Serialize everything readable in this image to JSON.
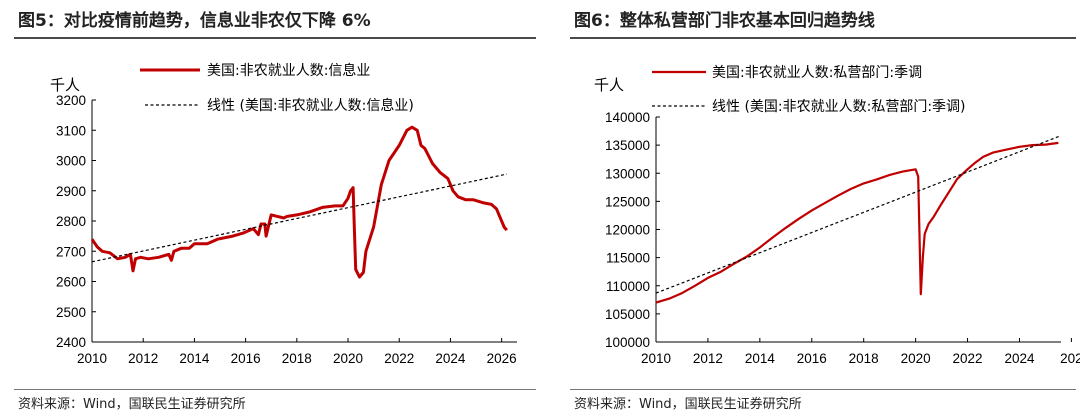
{
  "panels": {
    "left": {
      "title": "图5：对比疫情前趋势，信息业非农仅下降 6%",
      "source": "资料来源：Wind，国联民生证券研究所"
    },
    "right": {
      "title": "图6：整体私营部门非农基本回归趋势线",
      "source": "资料来源：Wind，国联民生证券研究所"
    }
  },
  "colors": {
    "series": "#c00000",
    "trend": "#000000",
    "axis": "#000000"
  },
  "chart_data": [
    {
      "type": "line",
      "title": "",
      "ylabel": "千人",
      "xlim": [
        2010,
        2026.6
      ],
      "ylim": [
        2400,
        3200
      ],
      "xticks": [
        "2010",
        "2012",
        "2014",
        "2016",
        "2018",
        "2020",
        "2022",
        "2024",
        "2026"
      ],
      "yticks": [
        "2400",
        "2500",
        "2600",
        "2700",
        "2800",
        "2900",
        "3000",
        "3100",
        "3200"
      ],
      "legend_position": "top",
      "series": [
        {
          "name": "美国:非农就业人数:信息业",
          "style": "solid",
          "x": [
            2010.0,
            2010.2,
            2010.4,
            2010.7,
            2011.0,
            2011.3,
            2011.5,
            2011.6,
            2011.7,
            2011.9,
            2012.2,
            2012.6,
            2013.0,
            2013.1,
            2013.2,
            2013.5,
            2013.8,
            2014.0,
            2014.5,
            2014.9,
            2015.5,
            2015.9,
            2016.3,
            2016.5,
            2016.6,
            2016.75,
            2016.8,
            2017.0,
            2017.5,
            2017.6,
            2018.0,
            2018.5,
            2019.0,
            2019.5,
            2019.8,
            2020.0,
            2020.1,
            2020.2,
            2020.25,
            2020.3,
            2020.45,
            2020.6,
            2020.7,
            2021.0,
            2021.3,
            2021.6,
            2022.0,
            2022.3,
            2022.5,
            2022.7,
            2022.85,
            2023.0,
            2023.3,
            2023.6,
            2023.9,
            2024.1,
            2024.3,
            2024.6,
            2024.9,
            2025.3,
            2025.6,
            2025.8,
            2026.0,
            2026.1,
            2026.2
          ],
          "values": [
            2740,
            2715,
            2700,
            2695,
            2675,
            2680,
            2690,
            2635,
            2675,
            2680,
            2675,
            2680,
            2690,
            2670,
            2700,
            2710,
            2710,
            2725,
            2725,
            2740,
            2750,
            2760,
            2775,
            2755,
            2790,
            2790,
            2750,
            2820,
            2810,
            2815,
            2820,
            2830,
            2845,
            2850,
            2850,
            2875,
            2900,
            2910,
            2770,
            2640,
            2615,
            2630,
            2700,
            2780,
            2920,
            3000,
            3050,
            3100,
            3110,
            3100,
            3050,
            3040,
            2990,
            2960,
            2940,
            2900,
            2880,
            2870,
            2870,
            2860,
            2855,
            2840,
            2800,
            2780,
            2770
          ]
        },
        {
          "name": "线性 (美国:非农就业人数:信息业)",
          "style": "dashed",
          "x": [
            2010.0,
            2026.2
          ],
          "values": [
            2665,
            2955
          ]
        }
      ]
    },
    {
      "type": "line",
      "title": "",
      "ylabel": "千人",
      "xlim": [
        2010,
        2025.6
      ],
      "ylim": [
        100000,
        140000
      ],
      "xticks": [
        "2010",
        "2012",
        "2014",
        "2016",
        "2018",
        "2020",
        "2022",
        "2024",
        "202"
      ],
      "yticks": [
        "100000",
        "105000",
        "110000",
        "115000",
        "120000",
        "125000",
        "130000",
        "135000",
        "140000"
      ],
      "legend_position": "top",
      "series": [
        {
          "name": "美国:非农就业人数:私营部门:季调",
          "style": "solid",
          "x": [
            2010.0,
            2010.5,
            2011.0,
            2011.5,
            2012.0,
            2012.5,
            2013.0,
            2013.5,
            2014.0,
            2014.5,
            2015.0,
            2015.5,
            2016.0,
            2016.5,
            2017.0,
            2017.5,
            2018.0,
            2018.5,
            2019.0,
            2019.5,
            2020.0,
            2020.1,
            2020.2,
            2020.28,
            2020.35,
            2020.5,
            2020.7,
            2021.0,
            2021.3,
            2021.6,
            2022.0,
            2022.3,
            2022.6,
            2023.0,
            2023.5,
            2024.0,
            2024.5,
            2025.0,
            2025.5
          ],
          "values": [
            107000,
            107700,
            108700,
            110000,
            111400,
            112500,
            113900,
            115200,
            116800,
            118600,
            120300,
            121900,
            123400,
            124700,
            126000,
            127200,
            128200,
            128900,
            129700,
            130300,
            130700,
            129400,
            108500,
            115200,
            119200,
            121000,
            122300,
            124600,
            126800,
            129000,
            130700,
            131900,
            132900,
            133700,
            134200,
            134700,
            135000,
            135100,
            135400
          ]
        },
        {
          "name": "线性 (美国:非农就业人数:私营部门:季调)",
          "style": "dashed",
          "x": [
            2010.0,
            2025.6
          ],
          "values": [
            108700,
            136700
          ]
        }
      ]
    }
  ]
}
